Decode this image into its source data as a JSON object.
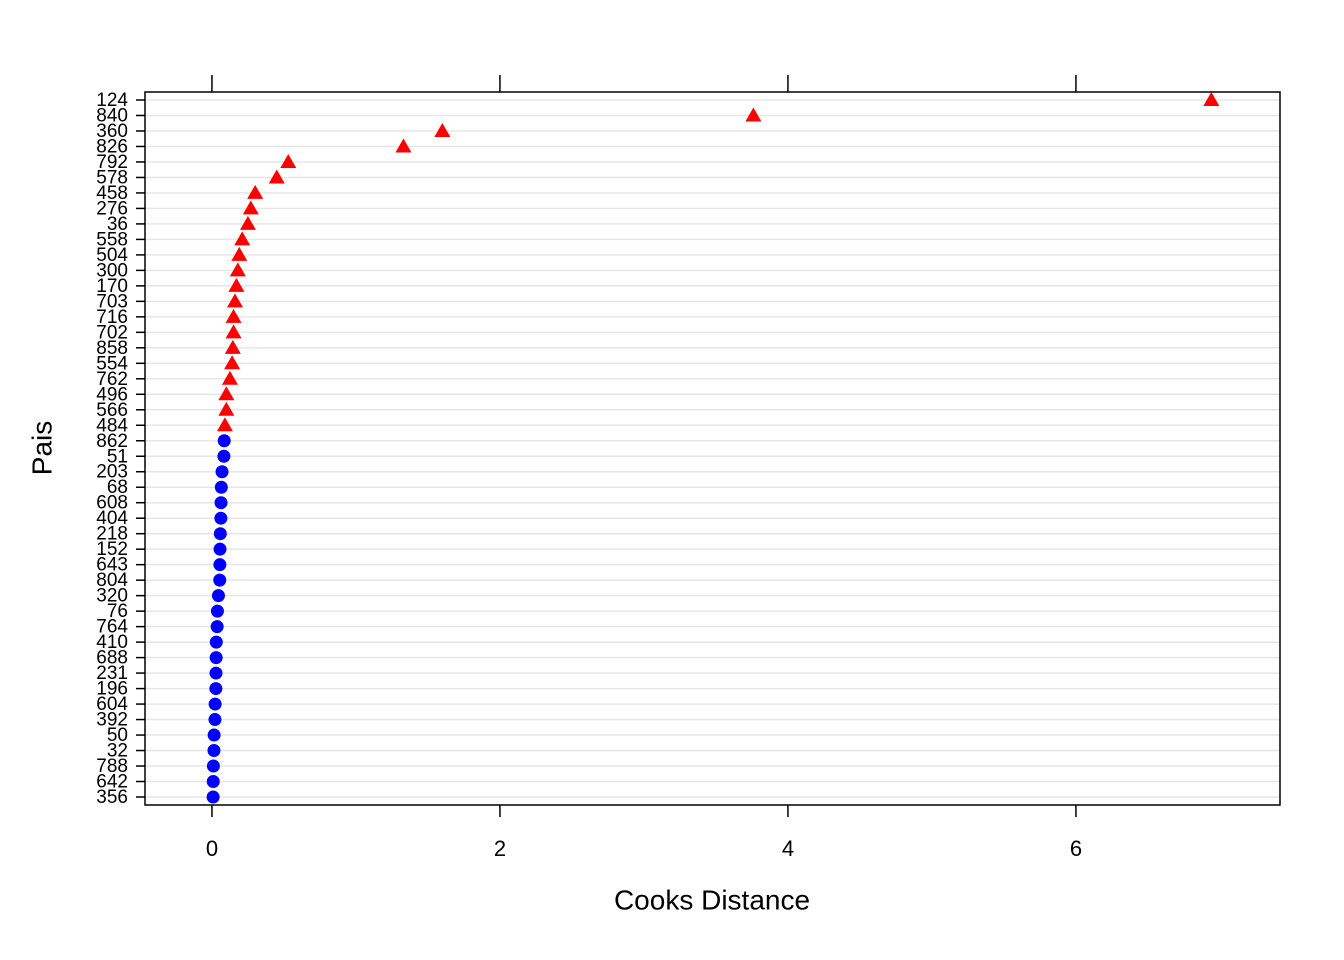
{
  "chart_data": {
    "type": "dotplot",
    "x_label": "Cooks Distance",
    "y_label": "Pais",
    "categories": [
      "124",
      "840",
      "360",
      "826",
      "792",
      "578",
      "458",
      "276",
      "36",
      "558",
      "504",
      "300",
      "170",
      "703",
      "716",
      "702",
      "858",
      "554",
      "762",
      "496",
      "566",
      "484",
      "862",
      "51",
      "203",
      "68",
      "608",
      "404",
      "218",
      "152",
      "643",
      "804",
      "320",
      "76",
      "764",
      "410",
      "688",
      "231",
      "196",
      "604",
      "392",
      "50",
      "32",
      "788",
      "642",
      "356"
    ],
    "series": [
      {
        "color": "#ff0000",
        "marker": "triangle",
        "values": [
          6.94,
          3.76,
          1.6,
          1.33,
          0.53,
          0.45,
          0.3,
          0.27,
          0.25,
          0.21,
          0.19,
          0.18,
          0.17,
          0.16,
          0.15,
          0.15,
          0.145,
          0.14,
          0.125,
          0.1,
          0.1,
          0.09,
          null,
          null,
          null,
          null,
          null,
          null,
          null,
          null,
          null,
          null,
          null,
          null,
          null,
          null,
          null,
          null,
          null,
          null,
          null,
          null,
          null,
          null,
          null,
          null
        ]
      },
      {
        "color": "#0000ff",
        "marker": "circle",
        "values": [
          null,
          null,
          null,
          null,
          null,
          null,
          null,
          null,
          null,
          null,
          null,
          null,
          null,
          null,
          null,
          null,
          null,
          null,
          null,
          null,
          null,
          null,
          0.085,
          0.083,
          0.07,
          0.065,
          0.063,
          0.062,
          0.058,
          0.056,
          0.055,
          0.054,
          0.045,
          0.038,
          0.036,
          0.03,
          0.029,
          0.028,
          0.027,
          0.022,
          0.021,
          0.015,
          0.014,
          0.01,
          0.009,
          0.008
        ]
      }
    ],
    "xlim": [
      -0.465,
      7.417
    ],
    "xticks": [
      0,
      2,
      4,
      6
    ],
    "grid": true
  }
}
